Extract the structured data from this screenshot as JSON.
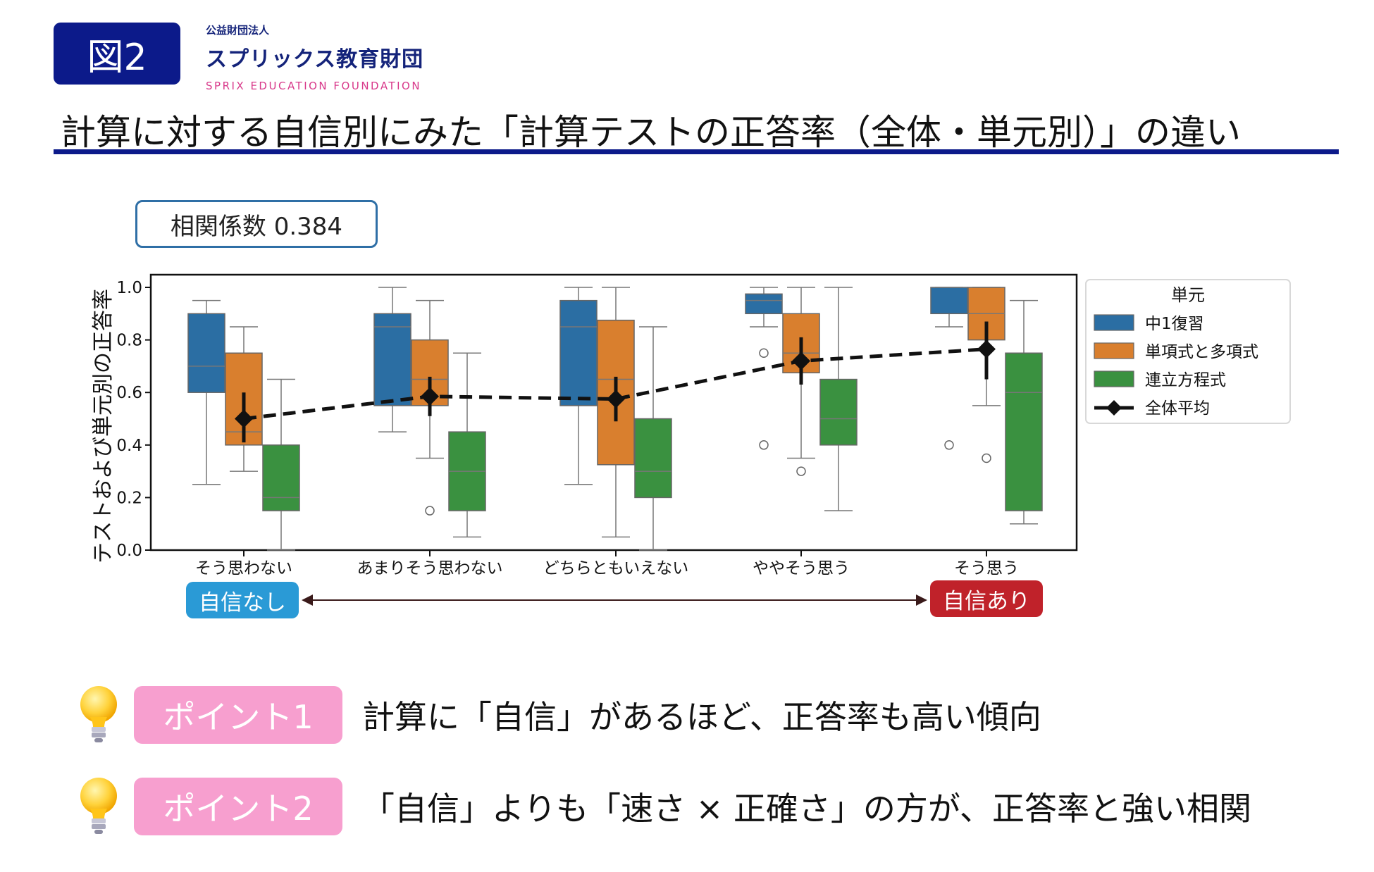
{
  "figure_label": "図2",
  "org": {
    "small": "公益財団法人",
    "name": "スプリックス教育財団",
    "english": "SPRIX EDUCATION FOUNDATION"
  },
  "title": "計算に対する自信別にみた「計算テストの正答率（全体・単元別）」の違い",
  "correlation": "相関係数 0.384",
  "confidence": {
    "low": "自信なし",
    "high": "自信あり",
    "low_color": "#2a9ad6",
    "high_color": "#c0222a"
  },
  "points": [
    {
      "label": "ポイント1",
      "text": "計算に「自信」があるほど、正答率も高い傾向"
    },
    {
      "label": "ポイント2",
      "text": "「自信」よりも「速さ × 正確さ」の方が、正答率と強い相関"
    }
  ],
  "chart_data": {
    "type": "box",
    "ylabel": "テストおよび単元別の正答率",
    "ylim": [
      0,
      1.0
    ],
    "yticks": [
      "0.0",
      "0.2",
      "0.4",
      "0.6",
      "0.8",
      "1.0"
    ],
    "categories": [
      "そう思わない",
      "あまりそう思わない",
      "どちらともいえない",
      "ややそう思う",
      "そう思う"
    ],
    "legend_title": "単元",
    "legend_position": "right",
    "series": [
      {
        "name": "中1復習",
        "color": "#2b6ea3",
        "boxes": [
          {
            "min": 0.25,
            "q1": 0.6,
            "median": 0.7,
            "q3": 0.9,
            "max": 0.95,
            "outliers": []
          },
          {
            "min": 0.45,
            "q1": 0.55,
            "median": 0.85,
            "q3": 0.9,
            "max": 1.0,
            "outliers": []
          },
          {
            "min": 0.25,
            "q1": 0.55,
            "median": 0.85,
            "q3": 0.95,
            "max": 1.0,
            "outliers": []
          },
          {
            "min": 0.85,
            "q1": 0.9,
            "median": 0.95,
            "q3": 0.975,
            "max": 1.0,
            "outliers": [
              0.75,
              0.4
            ]
          },
          {
            "min": 0.85,
            "q1": 0.9,
            "median": 1.0,
            "q3": 1.0,
            "max": 1.0,
            "outliers": [
              0.4
            ]
          }
        ]
      },
      {
        "name": "単項式と多項式",
        "color": "#d97f2e",
        "boxes": [
          {
            "min": 0.3,
            "q1": 0.4,
            "median": 0.45,
            "q3": 0.75,
            "max": 0.85,
            "outliers": []
          },
          {
            "min": 0.35,
            "q1": 0.55,
            "median": 0.65,
            "q3": 0.8,
            "max": 0.95,
            "outliers": [
              0.15
            ]
          },
          {
            "min": 0.05,
            "q1": 0.325,
            "median": 0.65,
            "q3": 0.875,
            "max": 1.0,
            "outliers": []
          },
          {
            "min": 0.35,
            "q1": 0.675,
            "median": 0.75,
            "q3": 0.9,
            "max": 1.0,
            "outliers": [
              0.3
            ]
          },
          {
            "min": 0.55,
            "q1": 0.8,
            "median": 0.9,
            "q3": 1.0,
            "max": 1.0,
            "outliers": [
              0.35
            ]
          }
        ]
      },
      {
        "name": "連立方程式",
        "color": "#3a9140",
        "boxes": [
          {
            "min": 0.0,
            "q1": 0.15,
            "median": 0.2,
            "q3": 0.4,
            "max": 0.65,
            "outliers": []
          },
          {
            "min": 0.05,
            "q1": 0.15,
            "median": 0.3,
            "q3": 0.45,
            "max": 0.75,
            "outliers": []
          },
          {
            "min": 0.0,
            "q1": 0.2,
            "median": 0.3,
            "q3": 0.5,
            "max": 0.85,
            "outliers": []
          },
          {
            "min": 0.15,
            "q1": 0.4,
            "median": 0.5,
            "q3": 0.65,
            "max": 1.0,
            "outliers": []
          },
          {
            "min": 0.1,
            "q1": 0.15,
            "median": 0.6,
            "q3": 0.75,
            "max": 0.95,
            "outliers": []
          }
        ]
      }
    ],
    "overall_mean": {
      "name": "全体平均",
      "values": [
        0.5,
        0.585,
        0.575,
        0.72,
        0.765
      ],
      "ci_low": [
        0.41,
        0.51,
        0.49,
        0.63,
        0.65
      ],
      "ci_high": [
        0.6,
        0.66,
        0.66,
        0.81,
        0.87
      ]
    }
  }
}
